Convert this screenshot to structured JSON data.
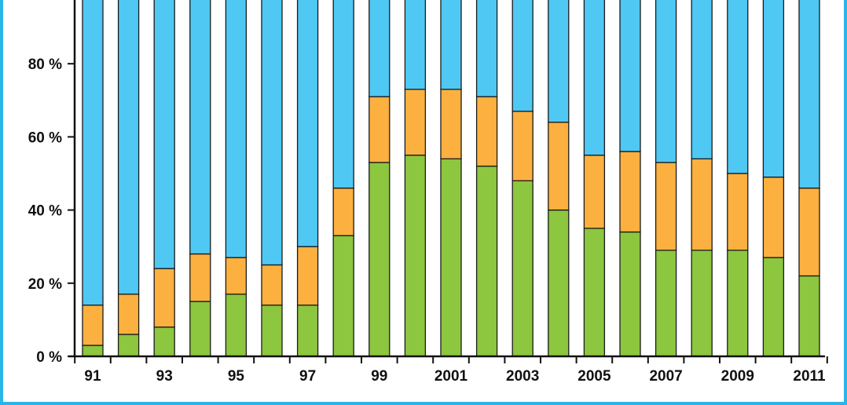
{
  "chart_data": {
    "type": "bar",
    "stacked": true,
    "percent": true,
    "categories": [
      "1991",
      "1992",
      "1993",
      "1994",
      "1995",
      "1996",
      "1997",
      "1998",
      "1999",
      "2000",
      "2001",
      "2002",
      "2003",
      "2004",
      "2005",
      "2006",
      "2007",
      "2008",
      "2009",
      "2010",
      "2011"
    ],
    "x_tick_labels": [
      "91",
      "",
      "93",
      "",
      "95",
      "",
      "97",
      "",
      "99",
      "",
      "2001",
      "",
      "2003",
      "",
      "2005",
      "",
      "2007",
      "",
      "2009",
      "",
      "2011"
    ],
    "y_tick_labels": [
      "0 %",
      "20 %",
      "40 %",
      "60 %",
      "80 %"
    ],
    "y_ticks": [
      0,
      20,
      40,
      60,
      80
    ],
    "ylim": [
      0,
      100
    ],
    "title": "",
    "xlabel": "",
    "ylabel": "",
    "grid": false,
    "series": [
      {
        "color": "#8dc63f",
        "values": [
          3,
          6,
          8,
          15,
          17,
          14,
          14,
          33,
          53,
          55,
          54,
          52,
          48,
          40,
          35,
          34,
          29,
          29,
          29,
          27,
          22
        ]
      },
      {
        "color": "#fbb040",
        "values": [
          11,
          11,
          16,
          13,
          10,
          11,
          16,
          13,
          18,
          18,
          19,
          19,
          19,
          24,
          20,
          22,
          24,
          25,
          21,
          22,
          24
        ]
      },
      {
        "color": "#4fc8f4",
        "values": [
          86,
          83,
          76,
          72,
          73,
          75,
          70,
          54,
          29,
          27,
          27,
          29,
          33,
          36,
          45,
          44,
          47,
          46,
          50,
          51,
          54
        ]
      }
    ]
  }
}
